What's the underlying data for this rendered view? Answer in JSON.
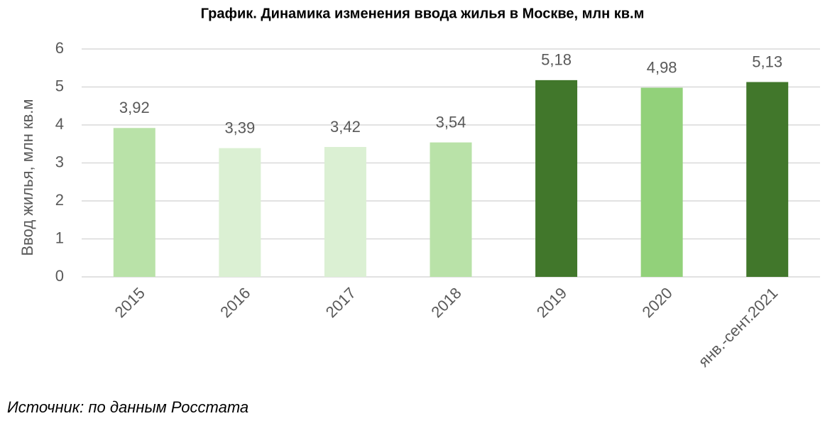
{
  "chart_data": {
    "type": "bar",
    "title": "График. Динамика изменения ввода жилья в Москве, млн кв.м",
    "y_label": "Ввод жилья, млн кв.м",
    "source": "Источник: по данным Росстата",
    "categories": [
      "2015",
      "2016",
      "2017",
      "2018",
      "2019",
      "2020",
      "янв.-сент.2021"
    ],
    "values": [
      3.92,
      3.39,
      3.42,
      3.54,
      5.18,
      4.98,
      5.13
    ],
    "value_labels": [
      "3,92",
      "3,39",
      "3,42",
      "3,54",
      "5,18",
      "4,98",
      "5,13"
    ],
    "colors": [
      "#b9e2a8",
      "#dbf0d3",
      "#dbf0d3",
      "#b9e2a8",
      "#41772b",
      "#92d17a",
      "#41772b"
    ],
    "ylim": [
      0,
      6
    ],
    "yticks": [
      0,
      1,
      2,
      3,
      4,
      5,
      6
    ],
    "grid": true
  }
}
